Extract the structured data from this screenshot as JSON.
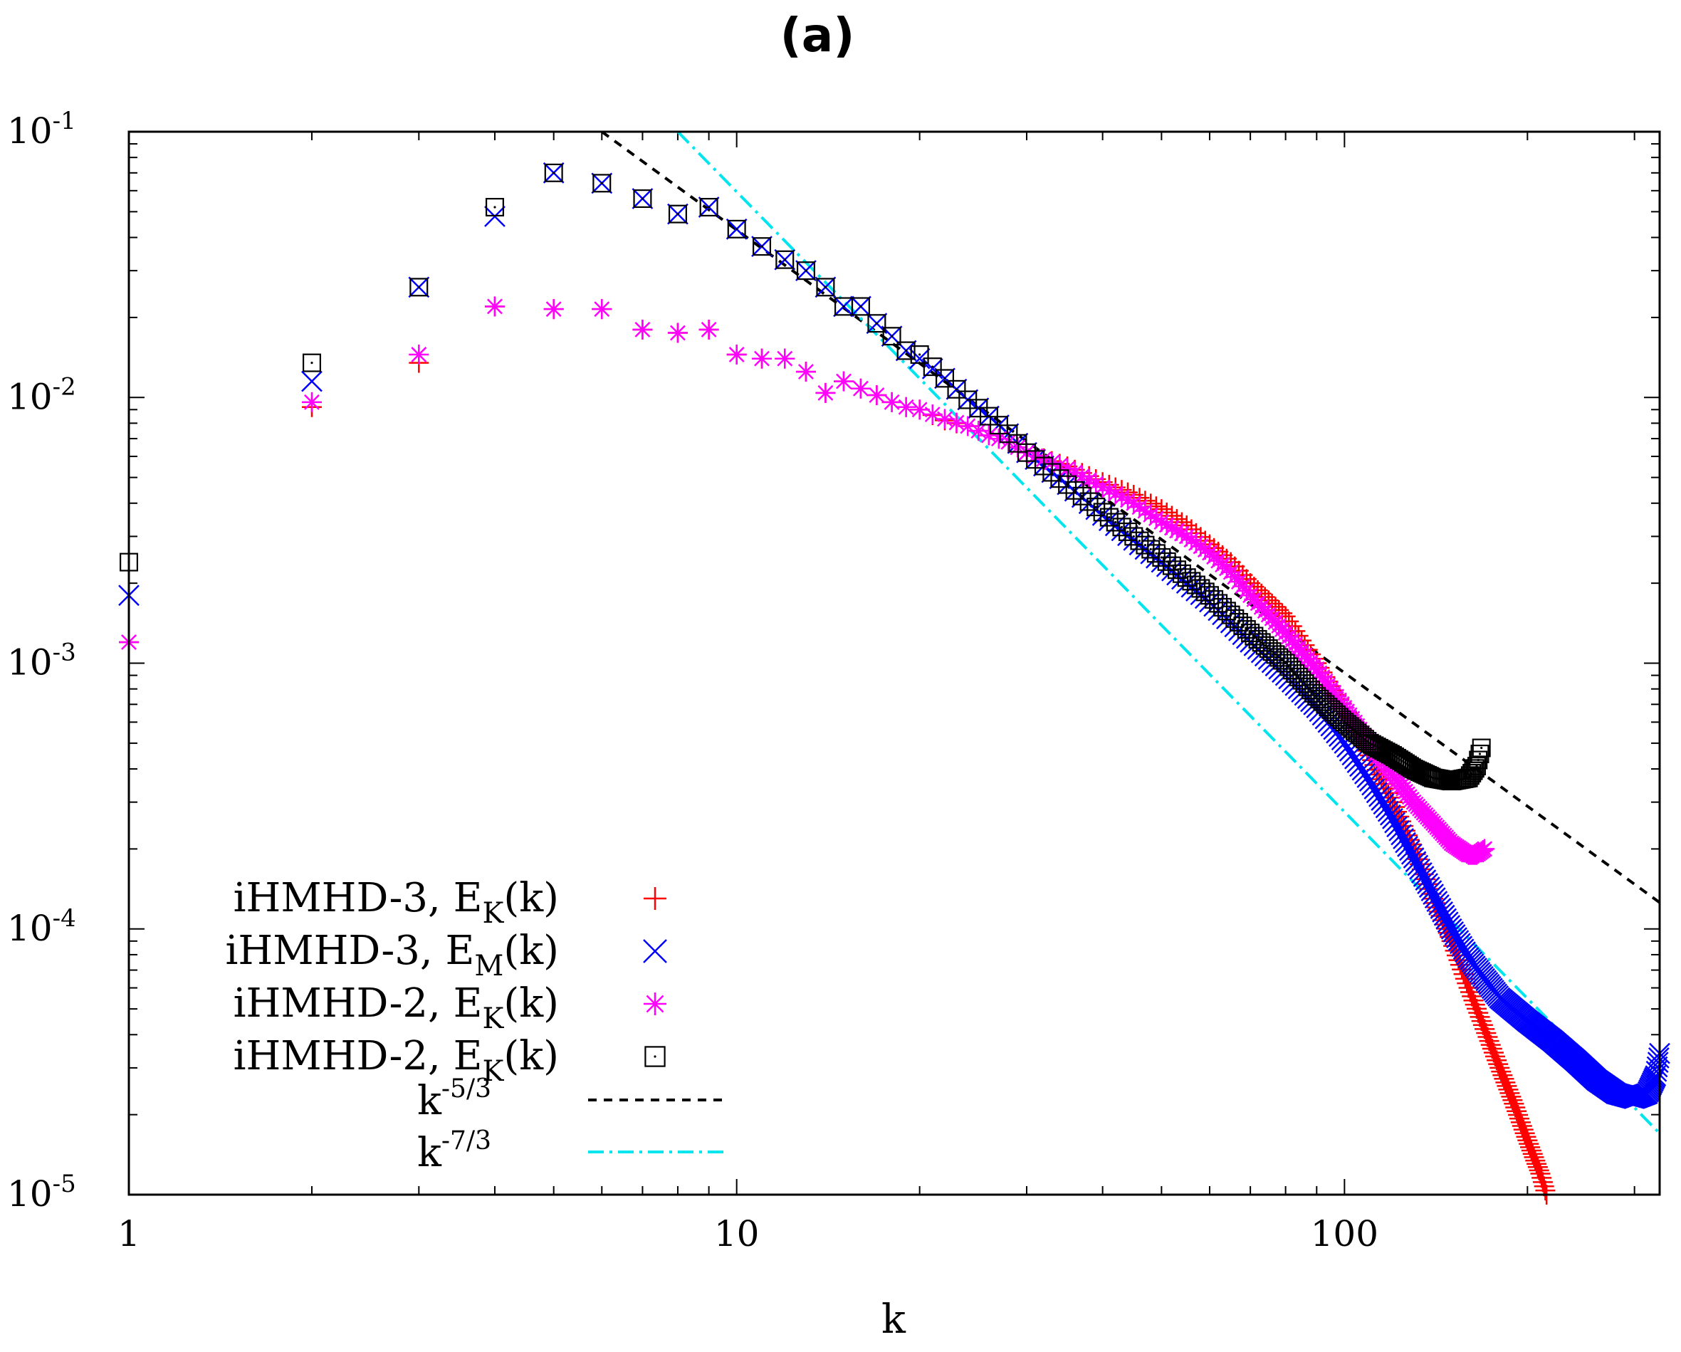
{
  "chart_data": {
    "type": "scatter",
    "title": "(a)",
    "xlabel": "k",
    "ylabel": "",
    "xscale": "log",
    "yscale": "log",
    "xlim": [
      1,
      330
    ],
    "ylim": [
      1e-05,
      0.1
    ],
    "x_ticks": [
      {
        "value": 1,
        "label": "1"
      },
      {
        "value": 10,
        "label": "10"
      },
      {
        "value": 100,
        "label": "100"
      }
    ],
    "y_ticks": [
      {
        "value": 0.1,
        "base": "10",
        "exp": "-1"
      },
      {
        "value": 0.01,
        "base": "10",
        "exp": "-2"
      },
      {
        "value": 0.001,
        "base": "10",
        "exp": "-3"
      },
      {
        "value": 0.0001,
        "base": "10",
        "exp": "-4"
      },
      {
        "value": 1e-05,
        "base": "10",
        "exp": "-5"
      }
    ],
    "legend_position": "bottom-left",
    "series": [
      {
        "name": "iHMHD-3, E_K(k)",
        "label_prefix": "iHMHD-3, E",
        "label_sub": "K",
        "label_suffix": "(k)",
        "marker": "plus",
        "color": "#ff0000",
        "points": [
          [
            1,
            0.0012
          ],
          [
            2,
            0.0092
          ],
          [
            3,
            0.0135
          ],
          [
            4,
            0.022
          ],
          [
            5,
            0.0215
          ],
          [
            6,
            0.0215
          ],
          [
            7,
            0.018
          ],
          [
            8,
            0.0175
          ],
          [
            9,
            0.018
          ],
          [
            10,
            0.0145
          ],
          [
            11,
            0.014
          ],
          [
            12,
            0.014
          ],
          [
            13,
            0.0125
          ],
          [
            14,
            0.0104
          ],
          [
            15,
            0.0115
          ],
          [
            16,
            0.0108
          ],
          [
            17,
            0.0102
          ],
          [
            18,
            0.0096
          ],
          [
            19,
            0.0092
          ],
          [
            20,
            0.009
          ],
          [
            22,
            0.0082
          ],
          [
            24,
            0.0078
          ],
          [
            26,
            0.0072
          ],
          [
            28,
            0.0068
          ],
          [
            30,
            0.0062
          ],
          [
            35,
            0.0055
          ],
          [
            40,
            0.0048
          ],
          [
            45,
            0.0043
          ],
          [
            50,
            0.0038
          ],
          [
            55,
            0.0033
          ],
          [
            60,
            0.0028
          ],
          [
            65,
            0.0024
          ],
          [
            70,
            0.002
          ],
          [
            80,
            0.0015
          ],
          [
            90,
            0.001
          ],
          [
            100,
            0.00068
          ],
          [
            110,
            0.00045
          ],
          [
            120,
            0.0003
          ],
          [
            130,
            0.0002
          ],
          [
            140,
            0.00013
          ],
          [
            150,
            9e-05
          ],
          [
            160,
            6e-05
          ],
          [
            170,
            4.2e-05
          ],
          [
            180,
            3e-05
          ],
          [
            190,
            2.2e-05
          ],
          [
            200,
            1.6e-05
          ],
          [
            210,
            1.2e-05
          ],
          [
            215,
            1e-05
          ]
        ]
      },
      {
        "name": "iHMHD-3, E_M(k)",
        "label_prefix": "iHMHD-3, E",
        "label_sub": "M",
        "label_suffix": "(k)",
        "marker": "cross",
        "color": "#0000ff",
        "points": [
          [
            1,
            0.0018
          ],
          [
            2,
            0.0115
          ],
          [
            3,
            0.026
          ],
          [
            4,
            0.048
          ],
          [
            5,
            0.07
          ],
          [
            6,
            0.064
          ],
          [
            7,
            0.056
          ],
          [
            8,
            0.049
          ],
          [
            9,
            0.052
          ],
          [
            10,
            0.043
          ],
          [
            11,
            0.037
          ],
          [
            12,
            0.033
          ],
          [
            13,
            0.03
          ],
          [
            14,
            0.026
          ],
          [
            15,
            0.022
          ],
          [
            16,
            0.022
          ],
          [
            17,
            0.019
          ],
          [
            18,
            0.017
          ],
          [
            19,
            0.015
          ],
          [
            20,
            0.014
          ],
          [
            22,
            0.0118
          ],
          [
            24,
            0.0098
          ],
          [
            26,
            0.0085
          ],
          [
            28,
            0.0073
          ],
          [
            30,
            0.0062
          ],
          [
            35,
            0.0047
          ],
          [
            40,
            0.0036
          ],
          [
            45,
            0.0029
          ],
          [
            50,
            0.0024
          ],
          [
            55,
            0.002
          ],
          [
            60,
            0.0017
          ],
          [
            70,
            0.0012
          ],
          [
            80,
            0.0009
          ],
          [
            90,
            0.00068
          ],
          [
            100,
            0.0005
          ],
          [
            110,
            0.00036
          ],
          [
            120,
            0.00026
          ],
          [
            130,
            0.000185
          ],
          [
            140,
            0.000135
          ],
          [
            150,
            0.0001
          ],
          [
            160,
            7.8e-05
          ],
          [
            170,
            6.5e-05
          ],
          [
            180,
            5.5e-05
          ],
          [
            200,
            4.5e-05
          ],
          [
            220,
            3.8e-05
          ],
          [
            240,
            3.2e-05
          ],
          [
            260,
            2.7e-05
          ],
          [
            280,
            2.4e-05
          ],
          [
            300,
            2.3e-05
          ],
          [
            315,
            2.4e-05
          ],
          [
            325,
            2.8e-05
          ],
          [
            330,
            3.4e-05
          ]
        ]
      },
      {
        "name": "iHMHD-2, E_K(k)",
        "label_prefix": "iHMHD-2, E",
        "label_sub": "K",
        "label_suffix": "(k)",
        "marker": "star",
        "color": "#ff00ff",
        "points": [
          [
            1,
            0.0012
          ],
          [
            2,
            0.0096
          ],
          [
            3,
            0.0145
          ],
          [
            4,
            0.022
          ],
          [
            5,
            0.0215
          ],
          [
            6,
            0.0215
          ],
          [
            7,
            0.018
          ],
          [
            8,
            0.0175
          ],
          [
            9,
            0.018
          ],
          [
            10,
            0.0145
          ],
          [
            11,
            0.014
          ],
          [
            12,
            0.014
          ],
          [
            13,
            0.0125
          ],
          [
            14,
            0.0104
          ],
          [
            15,
            0.0115
          ],
          [
            16,
            0.0108
          ],
          [
            17,
            0.0102
          ],
          [
            18,
            0.0096
          ],
          [
            19,
            0.0092
          ],
          [
            20,
            0.009
          ],
          [
            22,
            0.0083
          ],
          [
            24,
            0.0078
          ],
          [
            26,
            0.0072
          ],
          [
            28,
            0.0068
          ],
          [
            30,
            0.0062
          ],
          [
            35,
            0.0054
          ],
          [
            40,
            0.0046
          ],
          [
            45,
            0.004
          ],
          [
            50,
            0.0034
          ],
          [
            55,
            0.003
          ],
          [
            60,
            0.0026
          ],
          [
            65,
            0.0022
          ],
          [
            70,
            0.0018
          ],
          [
            80,
            0.0013
          ],
          [
            90,
            0.00095
          ],
          [
            100,
            0.00068
          ],
          [
            110,
            0.0005
          ],
          [
            120,
            0.00038
          ],
          [
            130,
            0.0003
          ],
          [
            140,
            0.00025
          ],
          [
            150,
            0.00021
          ],
          [
            160,
            0.00019
          ],
          [
            165,
            0.00019
          ],
          [
            170,
            0.0002
          ]
        ]
      },
      {
        "name": "iHMHD-2, E_K(k)",
        "label_prefix": "iHMHD-2, E",
        "label_sub": "K",
        "label_suffix": "(k)",
        "marker": "square",
        "color": "#000000",
        "points": [
          [
            1,
            0.0024
          ],
          [
            2,
            0.0135
          ],
          [
            3,
            0.026
          ],
          [
            4,
            0.052
          ],
          [
            5,
            0.07
          ],
          [
            6,
            0.064
          ],
          [
            7,
            0.056
          ],
          [
            8,
            0.049
          ],
          [
            9,
            0.052
          ],
          [
            10,
            0.043
          ],
          [
            11,
            0.037
          ],
          [
            12,
            0.033
          ],
          [
            13,
            0.03
          ],
          [
            14,
            0.026
          ],
          [
            15,
            0.022
          ],
          [
            16,
            0.022
          ],
          [
            17,
            0.019
          ],
          [
            18,
            0.017
          ],
          [
            19,
            0.015
          ],
          [
            20,
            0.0145
          ],
          [
            22,
            0.0118
          ],
          [
            24,
            0.0098
          ],
          [
            26,
            0.0085
          ],
          [
            28,
            0.0073
          ],
          [
            30,
            0.0062
          ],
          [
            35,
            0.0047
          ],
          [
            40,
            0.0037
          ],
          [
            45,
            0.003
          ],
          [
            50,
            0.0025
          ],
          [
            55,
            0.0021
          ],
          [
            60,
            0.0018
          ],
          [
            70,
            0.0013
          ],
          [
            80,
            0.001
          ],
          [
            90,
            0.00075
          ],
          [
            100,
            0.0006
          ],
          [
            110,
            0.0005
          ],
          [
            120,
            0.00045
          ],
          [
            130,
            0.0004
          ],
          [
            140,
            0.00037
          ],
          [
            150,
            0.00036
          ],
          [
            160,
            0.00037
          ],
          [
            165,
            0.00041
          ],
          [
            168,
            0.00048
          ]
        ]
      }
    ],
    "reference_lines": [
      {
        "name": "k^-5/3",
        "label_base": "k",
        "label_exp": "-5/3",
        "style": "dashed",
        "color": "#000000",
        "x_range": [
          6,
          330
        ],
        "anchor": [
          6,
          0.1
        ],
        "slope": -1.6667
      },
      {
        "name": "k^-7/3",
        "label_base": "k",
        "label_exp": "-7/3",
        "style": "dash-dot",
        "color": "#00e5ee",
        "x_range": [
          8,
          330
        ],
        "anchor": [
          8,
          0.1
        ],
        "slope": -2.3333
      }
    ]
  }
}
